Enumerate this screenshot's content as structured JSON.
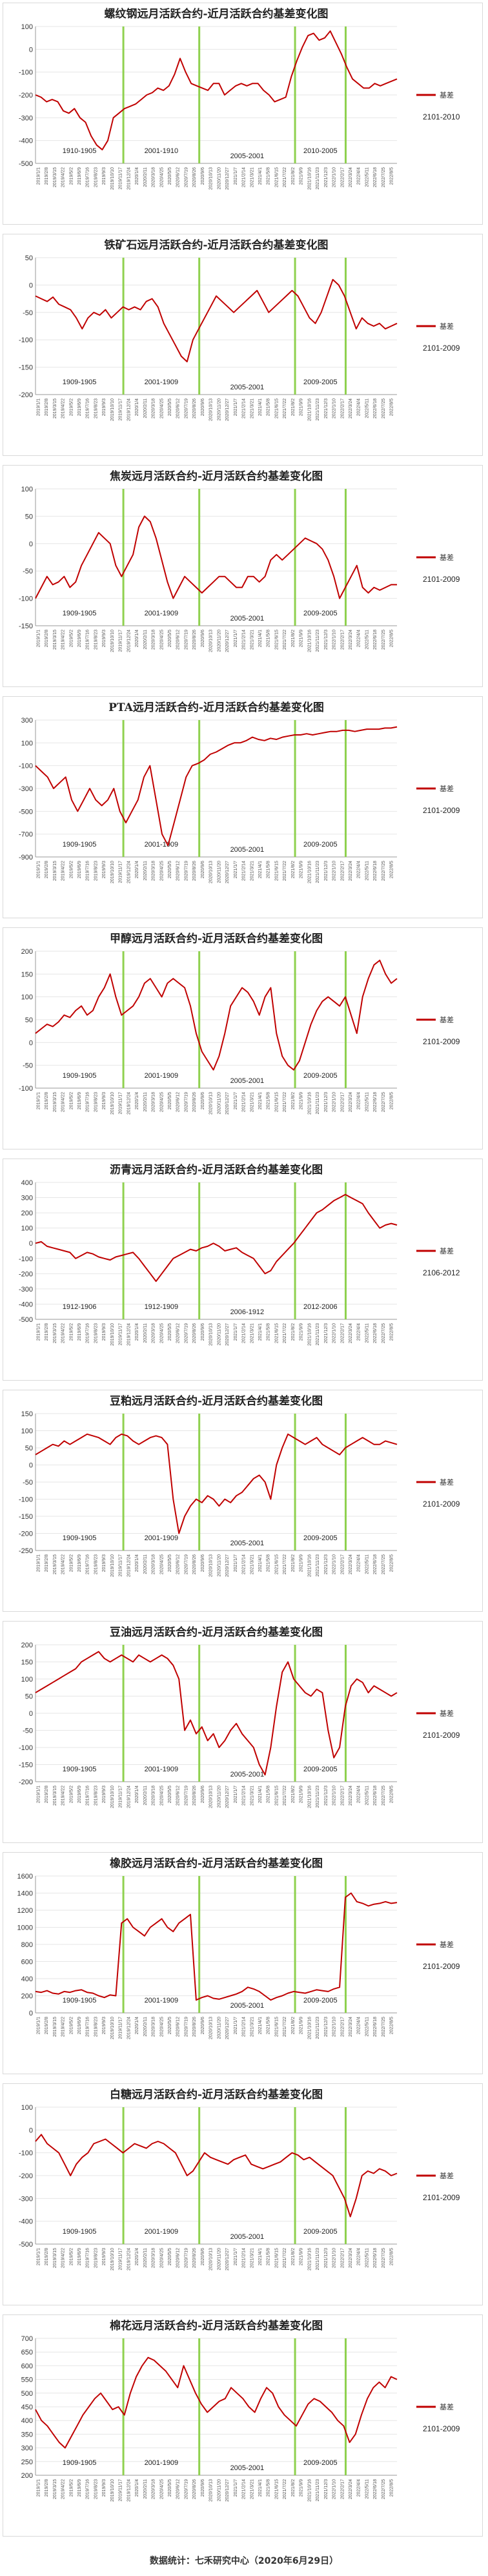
{
  "footer": "数据统计：七禾研究中心（2020年6月29日）",
  "legend_label": "基差",
  "colors": {
    "line": "#c00000",
    "marker": "#8fd14f",
    "grid": "#e6e6e6",
    "axis": "#999999"
  },
  "chart_data": [
    {
      "type": "line",
      "title": "螺纹钢远月活跃合约-近月活跃合约基差变化图",
      "range_label": "2101-2010",
      "ylim": [
        -500,
        100
      ],
      "yticks": [
        100,
        0,
        -100,
        -200,
        -300,
        -400,
        -500
      ],
      "markers": [
        0.243,
        0.453,
        0.718,
        0.858
      ],
      "segments": [
        "1910-1905",
        "2001-1910",
        "2005-2001",
        "2010-2005"
      ],
      "series": [
        {
          "name": "基差",
          "values": [
            -200,
            -210,
            -230,
            -220,
            -230,
            -270,
            -280,
            -260,
            -300,
            -320,
            -380,
            -420,
            -440,
            -400,
            -300,
            -280,
            -260,
            -250,
            -240,
            -220,
            -200,
            -190,
            -170,
            -180,
            -160,
            -110,
            -40,
            -100,
            -150,
            -160,
            -170,
            -180,
            -150,
            -150,
            -200,
            -180,
            -160,
            -150,
            -160,
            -150,
            -150,
            -180,
            -200,
            -230,
            -220,
            -210,
            -120,
            -50,
            10,
            60,
            70,
            40,
            50,
            80,
            30,
            -20,
            -80,
            -130,
            -150,
            -170,
            -170,
            -150,
            -160,
            -150,
            -140,
            -130
          ]
        }
      ]
    },
    {
      "type": "line",
      "title": "铁矿石远月活跃合约-近月活跃合约基差变化图",
      "range_label": "2101-2009",
      "ylim": [
        -200,
        50
      ],
      "yticks": [
        50,
        0,
        -50,
        -100,
        -150,
        -200
      ],
      "markers": [
        0.243,
        0.453,
        0.718,
        0.858
      ],
      "segments": [
        "1909-1905",
        "2001-1909",
        "2005-2001",
        "2009-2005"
      ],
      "series": [
        {
          "name": "基差",
          "values": [
            -20,
            -25,
            -30,
            -22,
            -35,
            -40,
            -45,
            -60,
            -80,
            -60,
            -50,
            -55,
            -45,
            -60,
            -50,
            -40,
            -45,
            -40,
            -45,
            -30,
            -25,
            -40,
            -70,
            -90,
            -110,
            -130,
            -140,
            -100,
            -80,
            -60,
            -40,
            -20,
            -30,
            -40,
            -50,
            -40,
            -30,
            -20,
            -10,
            -30,
            -50,
            -40,
            -30,
            -20,
            -10,
            -20,
            -40,
            -60,
            -70,
            -50,
            -20,
            10,
            0,
            -20,
            -50,
            -80,
            -60,
            -70,
            -75,
            -70,
            -80,
            -75,
            -70
          ]
        }
      ]
    },
    {
      "type": "line",
      "title": "焦炭远月活跃合约-近月活跃合约基差变化图",
      "range_label": "2101-2009",
      "ylim": [
        -150,
        100
      ],
      "yticks": [
        100,
        50,
        0,
        -50,
        -100,
        -150
      ],
      "markers": [
        0.243,
        0.453,
        0.718,
        0.858
      ],
      "segments": [
        "1909-1905",
        "2001-1909",
        "2005-2001",
        "2009-2005"
      ],
      "series": [
        {
          "name": "基差",
          "values": [
            -100,
            -80,
            -60,
            -75,
            -70,
            -60,
            -80,
            -70,
            -40,
            -20,
            0,
            20,
            10,
            0,
            -40,
            -60,
            -40,
            -20,
            30,
            50,
            40,
            10,
            -30,
            -70,
            -100,
            -80,
            -60,
            -70,
            -80,
            -90,
            -80,
            -70,
            -60,
            -60,
            -70,
            -80,
            -80,
            -60,
            -60,
            -70,
            -60,
            -30,
            -20,
            -30,
            -20,
            -10,
            0,
            10,
            5,
            0,
            -10,
            -30,
            -60,
            -100,
            -80,
            -60,
            -40,
            -80,
            -90,
            -80,
            -85,
            -80,
            -75,
            -75
          ]
        }
      ]
    },
    {
      "type": "line",
      "title": "PTA远月活跃合约-近月活跃合约基差变化图",
      "range_label": "2101-2009",
      "ylim": [
        -900,
        300
      ],
      "yticks": [
        300,
        100,
        -100,
        -300,
        -500,
        -700,
        -900
      ],
      "markers": [
        0.243,
        0.453,
        0.718,
        0.858
      ],
      "segments": [
        "1909-1905",
        "2001-1909",
        "2005-2001",
        "2009-2005"
      ],
      "series": [
        {
          "name": "基差",
          "values": [
            -100,
            -150,
            -200,
            -300,
            -250,
            -200,
            -400,
            -500,
            -400,
            -300,
            -400,
            -450,
            -400,
            -300,
            -500,
            -600,
            -500,
            -400,
            -200,
            -100,
            -400,
            -700,
            -800,
            -600,
            -400,
            -200,
            -100,
            -80,
            -50,
            0,
            20,
            50,
            80,
            100,
            100,
            120,
            150,
            130,
            120,
            140,
            130,
            150,
            160,
            170,
            170,
            180,
            170,
            180,
            190,
            200,
            200,
            210,
            210,
            200,
            210,
            220,
            220,
            220,
            230,
            230,
            240
          ]
        }
      ]
    },
    {
      "type": "line",
      "title": "甲醇远月活跃合约-近月活跃合约基差变化图",
      "range_label": "2101-2009",
      "ylim": [
        -100,
        200
      ],
      "yticks": [
        200,
        150,
        100,
        50,
        0,
        -50,
        -100
      ],
      "markers": [
        0.243,
        0.453,
        0.718,
        0.858
      ],
      "segments": [
        "1909-1905",
        "2001-1909",
        "2005-2001",
        "2009-2005"
      ],
      "series": [
        {
          "name": "基差",
          "values": [
            20,
            30,
            40,
            35,
            45,
            60,
            55,
            70,
            80,
            60,
            70,
            100,
            120,
            150,
            100,
            60,
            70,
            80,
            100,
            130,
            140,
            120,
            100,
            130,
            140,
            130,
            120,
            80,
            20,
            -20,
            -40,
            -60,
            -30,
            20,
            80,
            100,
            120,
            110,
            90,
            60,
            100,
            120,
            20,
            -30,
            -50,
            -60,
            -40,
            0,
            40,
            70,
            90,
            100,
            90,
            80,
            100,
            60,
            20,
            100,
            140,
            170,
            180,
            150,
            130,
            140
          ]
        }
      ]
    },
    {
      "type": "line",
      "title": "沥青远月活跃合约-近月活跃合约基差变化图",
      "range_label": "2106-2012",
      "ylim": [
        -500,
        400
      ],
      "yticks": [
        400,
        300,
        200,
        100,
        0,
        -100,
        -200,
        -300,
        -400,
        -500
      ],
      "markers": [
        0.243,
        0.453,
        0.718,
        0.858
      ],
      "segments": [
        "1912-1906",
        "1912-1909",
        "2006-1912",
        "2012-2006"
      ],
      "series": [
        {
          "name": "基差",
          "values": [
            0,
            10,
            -20,
            -30,
            -40,
            -50,
            -60,
            -100,
            -80,
            -60,
            -70,
            -90,
            -100,
            -110,
            -90,
            -80,
            -70,
            -60,
            -100,
            -150,
            -200,
            -250,
            -200,
            -150,
            -100,
            -80,
            -60,
            -40,
            -50,
            -30,
            -20,
            0,
            -20,
            -50,
            -40,
            -30,
            -60,
            -80,
            -100,
            -150,
            -200,
            -180,
            -120,
            -80,
            -40,
            0,
            50,
            100,
            150,
            200,
            220,
            250,
            280,
            300,
            320,
            300,
            280,
            260,
            200,
            150,
            100,
            120,
            130,
            120
          ]
        }
      ]
    },
    {
      "type": "line",
      "title": "豆粕远月活跃合约-近月活跃合约基差变化图",
      "range_label": "2101-2009",
      "ylim": [
        -250,
        150
      ],
      "yticks": [
        150,
        100,
        50,
        0,
        -50,
        -100,
        -150,
        -200,
        -250
      ],
      "markers": [
        0.243,
        0.453,
        0.718,
        0.858
      ],
      "segments": [
        "1909-1905",
        "2001-1909",
        "2005-2001",
        "2009-2005"
      ],
      "series": [
        {
          "name": "基差",
          "values": [
            30,
            40,
            50,
            60,
            55,
            70,
            60,
            70,
            80,
            90,
            85,
            80,
            70,
            60,
            80,
            90,
            85,
            70,
            60,
            70,
            80,
            85,
            80,
            60,
            -100,
            -200,
            -150,
            -120,
            -100,
            -110,
            -90,
            -100,
            -120,
            -100,
            -110,
            -90,
            -80,
            -60,
            -40,
            -30,
            -50,
            -100,
            0,
            50,
            90,
            80,
            70,
            60,
            70,
            80,
            60,
            50,
            40,
            30,
            50,
            60,
            70,
            80,
            70,
            60,
            60,
            70,
            65,
            60
          ]
        }
      ]
    },
    {
      "type": "line",
      "title": "豆油远月活跃合约-近月活跃合约基差变化图",
      "range_label": "2101-2009",
      "ylim": [
        -200,
        200
      ],
      "yticks": [
        200,
        150,
        100,
        50,
        0,
        -50,
        -100,
        -150,
        -200
      ],
      "markers": [
        0.243,
        0.453,
        0.718,
        0.858
      ],
      "segments": [
        "1909-1905",
        "2001-1909",
        "2005-2001",
        "2009-2005"
      ],
      "series": [
        {
          "name": "基差",
          "values": [
            60,
            70,
            80,
            90,
            100,
            110,
            120,
            130,
            150,
            160,
            170,
            180,
            160,
            150,
            160,
            170,
            160,
            150,
            170,
            160,
            150,
            160,
            170,
            160,
            140,
            100,
            -50,
            -20,
            -60,
            -40,
            -80,
            -60,
            -100,
            -80,
            -50,
            -30,
            -60,
            -80,
            -100,
            -150,
            -180,
            -100,
            20,
            120,
            150,
            100,
            80,
            60,
            50,
            70,
            60,
            -50,
            -130,
            -100,
            20,
            80,
            100,
            90,
            60,
            80,
            70,
            60,
            50,
            60
          ]
        }
      ]
    },
    {
      "type": "line",
      "title": "橡胶远月活跃合约-近月活跃合约基差变化图",
      "range_label": "2101-2009",
      "ylim": [
        0,
        1600
      ],
      "yticks": [
        1600,
        1400,
        1200,
        1000,
        800,
        600,
        400,
        200,
        0
      ],
      "markers": [
        0.243,
        0.453,
        0.718,
        0.858
      ],
      "segments": [
        "1909-1905",
        "2001-1909",
        "2005-2001",
        "2009-2005"
      ],
      "series": [
        {
          "name": "基差",
          "values": [
            250,
            240,
            260,
            230,
            220,
            250,
            240,
            260,
            270,
            240,
            230,
            200,
            180,
            210,
            200,
            1050,
            1100,
            1000,
            950,
            900,
            1000,
            1050,
            1100,
            1000,
            950,
            1050,
            1100,
            1150,
            150,
            180,
            200,
            170,
            160,
            180,
            200,
            220,
            250,
            300,
            280,
            250,
            200,
            150,
            180,
            200,
            230,
            250,
            240,
            230,
            250,
            270,
            260,
            250,
            280,
            300,
            1350,
            1400,
            1300,
            1280,
            1250,
            1270,
            1280,
            1300,
            1280,
            1290
          ]
        }
      ]
    },
    {
      "type": "line",
      "title": "白糖远月活跃合约-近月活跃合约基差变化图",
      "range_label": "2101-2009",
      "ylim": [
        -500,
        100
      ],
      "yticks": [
        100,
        0,
        -100,
        -200,
        -300,
        -400,
        -500
      ],
      "markers": [
        0.243,
        0.453,
        0.718,
        0.858
      ],
      "segments": [
        "1909-1905",
        "2001-1909",
        "2005-2001",
        "2009-2005"
      ],
      "series": [
        {
          "name": "基差",
          "values": [
            -50,
            -20,
            -60,
            -80,
            -100,
            -150,
            -200,
            -150,
            -120,
            -100,
            -60,
            -50,
            -40,
            -60,
            -80,
            -100,
            -80,
            -60,
            -70,
            -80,
            -60,
            -50,
            -60,
            -80,
            -100,
            -150,
            -200,
            -180,
            -140,
            -100,
            -120,
            -130,
            -140,
            -150,
            -130,
            -120,
            -110,
            -150,
            -160,
            -170,
            -160,
            -150,
            -140,
            -120,
            -100,
            -110,
            -130,
            -120,
            -140,
            -160,
            -180,
            -200,
            -250,
            -300,
            -380,
            -300,
            -200,
            -180,
            -190,
            -170,
            -180,
            -200,
            -190
          ]
        }
      ]
    },
    {
      "type": "line",
      "title": "棉花远月活跃合约-近月活跃合约基差变化图",
      "range_label": "2101-2009",
      "ylim": [
        200,
        700
      ],
      "yticks": [
        700,
        650,
        600,
        550,
        500,
        450,
        400,
        350,
        300,
        250,
        200
      ],
      "markers": [
        0.243,
        0.453,
        0.718,
        0.858
      ],
      "segments": [
        "1909-1905",
        "2001-1909",
        "2005-2001",
        "2009-2005"
      ],
      "series": [
        {
          "name": "基差",
          "values": [
            440,
            400,
            380,
            350,
            320,
            300,
            340,
            380,
            420,
            450,
            480,
            500,
            470,
            440,
            450,
            420,
            500,
            560,
            600,
            630,
            620,
            600,
            580,
            550,
            520,
            600,
            550,
            500,
            460,
            430,
            450,
            470,
            480,
            520,
            500,
            480,
            450,
            430,
            480,
            520,
            500,
            450,
            420,
            400,
            380,
            420,
            460,
            480,
            470,
            450,
            430,
            400,
            380,
            320,
            350,
            420,
            480,
            520,
            540,
            520,
            560,
            550
          ]
        }
      ]
    }
  ]
}
